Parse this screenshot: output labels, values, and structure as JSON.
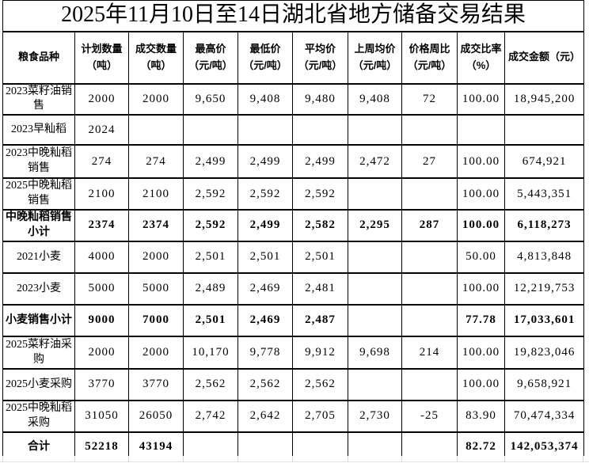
{
  "title": "2025年11月10日至14日湖北省地方储备交易结果",
  "colors": {
    "border": "#000000",
    "text": "#000000",
    "gridline": "#d9d9d9",
    "background": "#ffffff"
  },
  "table": {
    "columns": [
      {
        "label": "粮食品种"
      },
      {
        "label": "计划数量\n（吨）"
      },
      {
        "label": "成交数量\n（吨）"
      },
      {
        "label": "最高价\n（元/吨）"
      },
      {
        "label": "最低价\n（元/吨）"
      },
      {
        "label": "平均价\n（元/吨）"
      },
      {
        "label": "上周均价\n（元/吨）"
      },
      {
        "label": "价格周比\n（元/吨）"
      },
      {
        "label": "成交比率\n（%）"
      },
      {
        "label": "成交金额（元）"
      }
    ],
    "rows": [
      {
        "name": "2023菜籽油销售",
        "is_subtotal": false,
        "values": [
          "2000",
          "2000",
          "9,650",
          "9,408",
          "9,480",
          "9,408",
          "72",
          "100.00",
          "18,945,200"
        ]
      },
      {
        "name": "2023早籼稻",
        "is_subtotal": false,
        "values": [
          "2024",
          "",
          "",
          "",
          "",
          "",
          "",
          "",
          ""
        ]
      },
      {
        "name": "2023中晚籼稻销售",
        "is_subtotal": false,
        "values": [
          "274",
          "274",
          "2,499",
          "2,499",
          "2,499",
          "2,472",
          "27",
          "100.00",
          "674,921"
        ]
      },
      {
        "name": "2025中晚籼稻销售",
        "is_subtotal": false,
        "values": [
          "2100",
          "2100",
          "2,592",
          "2,592",
          "2,592",
          "",
          "",
          "100.00",
          "5,443,351"
        ]
      },
      {
        "name": "中晚籼稻销售小计",
        "is_subtotal": true,
        "values": [
          "2374",
          "2374",
          "2,592",
          "2,499",
          "2,582",
          "2,295",
          "287",
          "100.00",
          "6,118,273"
        ]
      },
      {
        "name": "2021小麦",
        "is_subtotal": false,
        "values": [
          "4000",
          "2000",
          "2,501",
          "2,501",
          "2,501",
          "",
          "",
          "50.00",
          "4,813,848"
        ]
      },
      {
        "name": "2023小麦",
        "is_subtotal": false,
        "values": [
          "5000",
          "5000",
          "2,489",
          "2,469",
          "2,481",
          "",
          "",
          "100.00",
          "12,219,753"
        ]
      },
      {
        "name": "小麦销售小计",
        "is_subtotal": true,
        "values": [
          "9000",
          "7000",
          "2,501",
          "2,469",
          "2,487",
          "",
          "",
          "77.78",
          "17,033,601"
        ]
      },
      {
        "name": "2025菜籽油采购",
        "is_subtotal": false,
        "values": [
          "2000",
          "2000",
          "10,170",
          "9,778",
          "9,912",
          "9,698",
          "214",
          "100.00",
          "19,823,046"
        ]
      },
      {
        "name": "2025小麦采购",
        "is_subtotal": false,
        "values": [
          "3770",
          "3770",
          "2,562",
          "2,562",
          "2,562",
          "",
          "",
          "100.00",
          "9,658,921"
        ]
      },
      {
        "name": "2025中晚籼稻采购",
        "is_subtotal": false,
        "values": [
          "31050",
          "26050",
          "2,742",
          "2,642",
          "2,705",
          "2,730",
          "-25",
          "83.90",
          "70,474,334"
        ]
      },
      {
        "name": "合计",
        "is_subtotal": true,
        "values": [
          "52218",
          "43194",
          "",
          "",
          "",
          "",
          "",
          "82.72",
          "142,053,374"
        ]
      }
    ]
  }
}
